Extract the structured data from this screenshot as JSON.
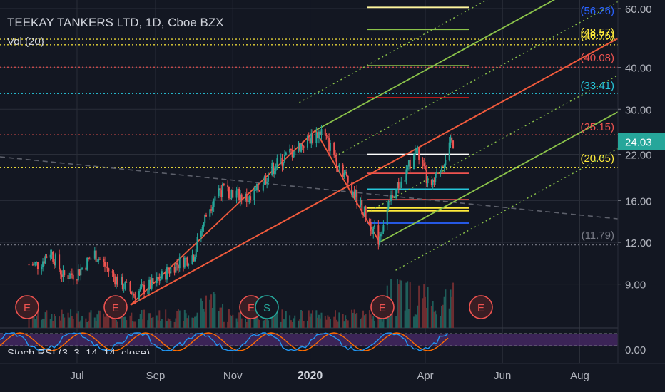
{
  "header": {
    "symbol": "TEEKAY TANKERS LTD, 1D, Cboe BZX",
    "volume_label": "Vol (20)",
    "oscillator_label": "Stoch RSI (3, 3, 14, 14, close)"
  },
  "chart_data": {
    "type": "candlestick",
    "title": "TEEKAY TANKERS LTD, 1D, Cboe BZX",
    "scale": "log",
    "price_axis_ticks": [
      "60.00",
      "40.00",
      "30.00",
      "22.00",
      "16.00",
      "12.00",
      "9.00"
    ],
    "oscillator_axis_ticks": [
      "0.00"
    ],
    "time_axis_labels": [
      "Jul",
      "Sep",
      "Nov",
      "2020",
      "Apr",
      "Jun",
      "Aug"
    ],
    "current_price": "24.03",
    "level_labels": [
      "(56.26)",
      "(48.57)",
      "(46.76)",
      "(40.08)",
      "(33.41)",
      "(25.15)",
      "(20.05)",
      "(11.79)"
    ],
    "horizontal_levels": [
      {
        "label": "(56.26)",
        "value": 56.26,
        "color": "#2962ff"
      },
      {
        "label": "(48.57)",
        "value": 48.57,
        "color": "#ffeb3b"
      },
      {
        "label": "(46.76)",
        "value": 46.76,
        "color": "#ffeb3b"
      },
      {
        "label": "(40.08)",
        "value": 40.08,
        "color": "#ef5350"
      },
      {
        "label": "(33.41)",
        "value": 33.41,
        "color": "#26c6da"
      },
      {
        "label": "(25.15)",
        "value": 25.15,
        "color": "#ef5350"
      },
      {
        "label": "(20.05)",
        "value": 20.05,
        "color": "#ffeb3b"
      },
      {
        "label": "(11.79)",
        "value": 11.79,
        "color": "#787b86"
      }
    ],
    "event_markers": [
      "E",
      "E",
      "E",
      "S",
      "E",
      "E"
    ],
    "price_path": [
      [
        "2019-06-01",
        10.3
      ],
      [
        "2019-06-10",
        11.3
      ],
      [
        "2019-06-20",
        9.5
      ],
      [
        "2019-07-01",
        9.7
      ],
      [
        "2019-07-15",
        11.1
      ],
      [
        "2019-08-01",
        9.3
      ],
      [
        "2019-08-15",
        8.4
      ],
      [
        "2019-09-01",
        9.1
      ],
      [
        "2019-09-15",
        10.2
      ],
      [
        "2019-10-01",
        11.0
      ],
      [
        "2019-10-10",
        14.2
      ],
      [
        "2019-10-20",
        17.3
      ],
      [
        "2019-11-01",
        17.0
      ],
      [
        "2019-11-15",
        16.0
      ],
      [
        "2019-12-01",
        19.8
      ],
      [
        "2019-12-15",
        22.0
      ],
      [
        "2020-01-01",
        24.5
      ],
      [
        "2020-01-10",
        25.8
      ],
      [
        "2020-01-20",
        22.0
      ],
      [
        "2020-02-01",
        18.0
      ],
      [
        "2020-02-15",
        14.2
      ],
      [
        "2020-02-24",
        12.3
      ],
      [
        "2020-03-05",
        16.5
      ],
      [
        "2020-03-15",
        18.5
      ],
      [
        "2020-03-25",
        23.0
      ],
      [
        "2020-04-05",
        17.0
      ],
      [
        "2020-04-15",
        21.0
      ],
      [
        "2020-04-22",
        24.03
      ]
    ],
    "colors": {
      "background": "#131722",
      "up": "#26a69a",
      "down": "#ef5350",
      "pitchfork_median": "#f05a3c",
      "pitchfork_channel": "#8bc34a",
      "stoch_k": "#2196f3",
      "stoch_d": "#ff6d00",
      "stoch_band": "#4a2a6a"
    }
  }
}
